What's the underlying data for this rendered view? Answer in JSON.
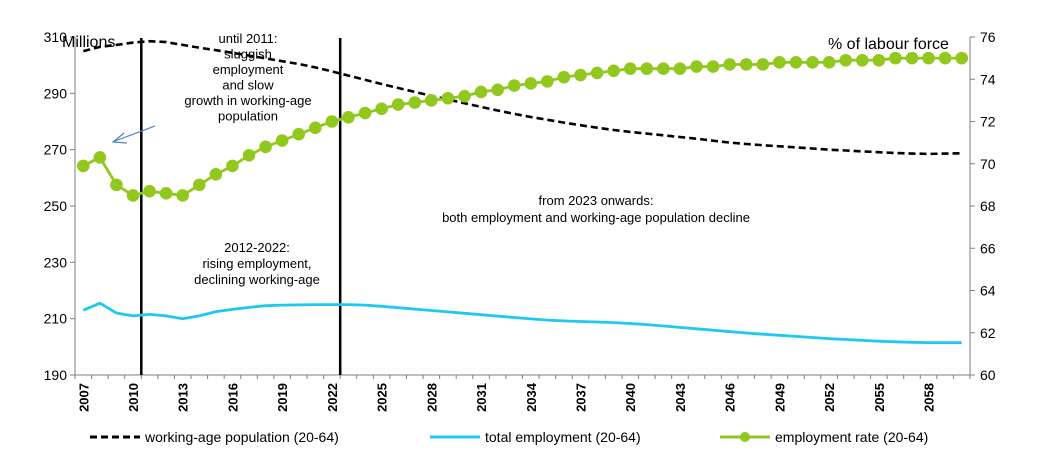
{
  "chart_data": {
    "type": "line",
    "left_axis_label": "Millions",
    "right_axis_label": "% of labour force",
    "ylim_left": [
      190,
      310
    ],
    "yticks_left": [
      190,
      210,
      230,
      250,
      270,
      290,
      310
    ],
    "ylim_right": [
      60,
      76
    ],
    "yticks_right": [
      60,
      62,
      64,
      66,
      68,
      70,
      72,
      74,
      76
    ],
    "xlim": [
      2007,
      2060
    ],
    "xtick_labels": [
      "2007",
      "2010",
      "2013",
      "2016",
      "2019",
      "2022",
      "2025",
      "2028",
      "2031",
      "2034",
      "2037",
      "2040",
      "2043",
      "2046",
      "2049",
      "2052",
      "2055",
      "2058"
    ],
    "vertical_lines": [
      2010.5,
      2022.5
    ],
    "series": [
      {
        "name": "working-age population (20-64)",
        "axis": "left",
        "color": "#000000",
        "style": "dashed",
        "x": [
          2007,
          2008,
          2009,
          2010,
          2011,
          2012,
          2013,
          2014,
          2015,
          2016,
          2017,
          2018,
          2019,
          2020,
          2021,
          2022,
          2023,
          2024,
          2025,
          2026,
          2027,
          2028,
          2029,
          2030,
          2031,
          2032,
          2033,
          2034,
          2035,
          2036,
          2037,
          2038,
          2039,
          2040,
          2041,
          2042,
          2043,
          2044,
          2045,
          2046,
          2047,
          2048,
          2049,
          2050,
          2051,
          2052,
          2053,
          2054,
          2055,
          2056,
          2057,
          2058,
          2059,
          2060
        ],
        "values": [
          305,
          306.5,
          307.2,
          308,
          308.5,
          308.2,
          307.2,
          306.2,
          305.3,
          304.4,
          303.4,
          302.4,
          301.4,
          300.4,
          299.2,
          297.8,
          296.3,
          294.8,
          293.3,
          291.9,
          290.5,
          289.1,
          287.8,
          286.5,
          285.2,
          283.9,
          282.7,
          281.6,
          280.6,
          279.6,
          278.7,
          277.8,
          277.0,
          276.3,
          275.7,
          275.1,
          274.5,
          273.9,
          273.2,
          272.5,
          272.0,
          271.6,
          271.2,
          270.8,
          270.4,
          270.0,
          269.7,
          269.4,
          269.1,
          268.8,
          268.6,
          268.5,
          268.6,
          268.7
        ]
      },
      {
        "name": "total employment (20-64)",
        "axis": "left",
        "color": "#1EC8F0",
        "style": "solid",
        "x": [
          2007,
          2008,
          2009,
          2010,
          2011,
          2012,
          2013,
          2014,
          2015,
          2016,
          2017,
          2018,
          2019,
          2020,
          2021,
          2022,
          2023,
          2024,
          2025,
          2026,
          2027,
          2028,
          2029,
          2030,
          2031,
          2032,
          2033,
          2034,
          2035,
          2036,
          2037,
          2038,
          2039,
          2040,
          2041,
          2042,
          2043,
          2044,
          2045,
          2046,
          2047,
          2048,
          2049,
          2050,
          2051,
          2052,
          2053,
          2054,
          2055,
          2056,
          2057,
          2058,
          2059,
          2060
        ],
        "values": [
          213,
          215.5,
          212,
          211,
          211.5,
          211,
          210,
          211,
          212.5,
          213.3,
          214,
          214.6,
          214.8,
          214.9,
          215,
          215,
          215,
          214.8,
          214.4,
          213.9,
          213.4,
          212.9,
          212.4,
          211.9,
          211.4,
          210.9,
          210.4,
          209.9,
          209.5,
          209.2,
          209.0,
          208.8,
          208.6,
          208.3,
          207.9,
          207.4,
          206.9,
          206.4,
          205.9,
          205.4,
          204.9,
          204.5,
          204.1,
          203.7,
          203.3,
          202.9,
          202.6,
          202.3,
          202.0,
          201.8,
          201.6,
          201.5,
          201.5,
          201.5
        ]
      },
      {
        "name": "employment rate (20-64)",
        "axis": "right",
        "color": "#92C81E",
        "style": "solid-markers",
        "x": [
          2007,
          2008,
          2009,
          2010,
          2011,
          2012,
          2013,
          2014,
          2015,
          2016,
          2017,
          2018,
          2019,
          2020,
          2021,
          2022,
          2023,
          2024,
          2025,
          2026,
          2027,
          2028,
          2029,
          2030,
          2031,
          2032,
          2033,
          2034,
          2035,
          2036,
          2037,
          2038,
          2039,
          2040,
          2041,
          2042,
          2043,
          2044,
          2045,
          2046,
          2047,
          2048,
          2049,
          2050,
          2051,
          2052,
          2053,
          2054,
          2055,
          2056,
          2057,
          2058,
          2059,
          2060
        ],
        "values": [
          69.9,
          70.3,
          69.0,
          68.5,
          68.7,
          68.6,
          68.5,
          69.0,
          69.5,
          69.9,
          70.4,
          70.8,
          71.1,
          71.4,
          71.7,
          72.0,
          72.2,
          72.4,
          72.6,
          72.8,
          72.9,
          73.0,
          73.1,
          73.2,
          73.4,
          73.5,
          73.7,
          73.8,
          73.9,
          74.1,
          74.2,
          74.3,
          74.4,
          74.5,
          74.5,
          74.5,
          74.5,
          74.6,
          74.6,
          74.7,
          74.7,
          74.7,
          74.8,
          74.8,
          74.8,
          74.8,
          74.9,
          74.9,
          74.9,
          75.0,
          75.0,
          75.0,
          75.0,
          75.0
        ]
      }
    ],
    "annotations": [
      {
        "id": "until2011",
        "lines": [
          "until 2011:",
          "sluggish",
          "employment",
          "and slow",
          "growth in working-age",
          "population"
        ]
      },
      {
        "id": "period2012",
        "lines": [
          "2012-2022:",
          "rising  employment,",
          "declining working-age"
        ]
      },
      {
        "id": "from2023",
        "lines": [
          "from 2023 onwards:",
          "both employment and working-age population decline"
        ]
      }
    ]
  }
}
